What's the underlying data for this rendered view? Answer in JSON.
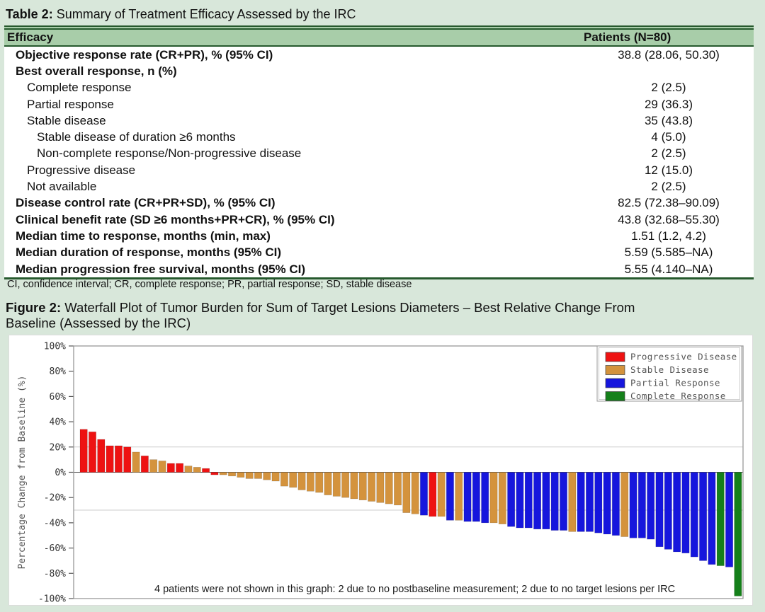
{
  "table": {
    "title_prefix": "Table 2:",
    "title_rest": " Summary of Treatment Efficacy Assessed by the IRC",
    "header": {
      "col1": "Efficacy",
      "col2": "Patients (N=80)"
    },
    "rows": [
      {
        "label": "Objective response rate (CR+PR), % (95% CI)",
        "value": "38.8 (28.06, 50.30)",
        "bold": true,
        "indent": 0
      },
      {
        "label": "Best overall response, n (%)",
        "value": "",
        "bold": true,
        "indent": 0
      },
      {
        "label": "Complete response",
        "value": "2 (2.5)",
        "bold": false,
        "indent": 1
      },
      {
        "label": "Partial response",
        "value": "29 (36.3)",
        "bold": false,
        "indent": 1
      },
      {
        "label": "Stable disease",
        "value": "35 (43.8)",
        "bold": false,
        "indent": 1
      },
      {
        "label": "Stable disease of duration ≥6 months",
        "value": "4 (5.0)",
        "bold": false,
        "indent": 2
      },
      {
        "label": "Non-complete response/Non-progressive disease",
        "value": "2 (2.5)",
        "bold": false,
        "indent": 2
      },
      {
        "label": "Progressive disease",
        "value": "12 (15.0)",
        "bold": false,
        "indent": 1
      },
      {
        "label": "Not available",
        "value": "2 (2.5)",
        "bold": false,
        "indent": 1
      },
      {
        "label": "Disease control rate (CR+PR+SD), % (95% CI)",
        "value": "82.5 (72.38–90.09)",
        "bold": true,
        "indent": 0
      },
      {
        "label": "Clinical benefit rate (SD ≥6 months+PR+CR), % (95% CI)",
        "value": "43.8 (32.68–55.30)",
        "bold": true,
        "indent": 0
      },
      {
        "label": "Median time to response, months (min, max)",
        "value": "1.51 (1.2, 4.2)",
        "bold": true,
        "indent": 0
      },
      {
        "label": "Median duration of response, months (95% CI)",
        "value": "5.59 (5.585–NA)",
        "bold": true,
        "indent": 0
      },
      {
        "label": "Median progression free survival, months (95% CI)",
        "value": "5.55 (4.140–NA)",
        "bold": true,
        "indent": 0
      }
    ],
    "footnote": "CI, confidence interval; CR, complete response; PR, partial response; SD, stable disease"
  },
  "figure": {
    "caption_prefix": "Figure 2:",
    "caption_line1": " Waterfall Plot of Tumor Burden for Sum of Target Lesions Diameters – Best Relative Change From",
    "caption_line2": "Baseline (Assessed by the IRC)"
  },
  "chart_data": {
    "type": "bar",
    "subtype": "waterfall",
    "title": "",
    "xlabel": "",
    "ylabel": "Percentage Change from Baseline (%)",
    "ylim": [
      -100,
      100
    ],
    "ytick_labels": [
      "100%",
      "80%",
      "60%",
      "40%",
      "20%",
      "0%",
      "-20%",
      "-40%",
      "-60%",
      "-80%",
      "-100%"
    ],
    "ytick_values": [
      100,
      80,
      60,
      40,
      20,
      0,
      -20,
      -40,
      -60,
      -80,
      -100
    ],
    "reference_lines": [
      20,
      -30
    ],
    "n_bars": 76,
    "values": [
      34,
      32,
      26,
      21,
      21,
      20,
      16,
      13,
      10,
      9,
      7,
      7,
      5,
      4,
      3,
      -2,
      -2,
      -3,
      -4,
      -5,
      -5,
      -6,
      -7,
      -11,
      -12,
      -14,
      -15,
      -16,
      -18,
      -19,
      -20,
      -21,
      -22,
      -23,
      -24,
      -25,
      -26,
      -32,
      -33,
      -34,
      -35,
      -35,
      -38,
      -38,
      -39,
      -39,
      -40,
      -40,
      -41,
      -43,
      -44,
      -44,
      -45,
      -45,
      -46,
      -46,
      -47,
      -47,
      -47,
      -48,
      -49,
      -50,
      -51,
      -52,
      -52,
      -53,
      -59,
      -61,
      -63,
      -64,
      -67,
      -70,
      -73,
      -74,
      -75,
      -98
    ],
    "response": [
      "PD",
      "PD",
      "PD",
      "PD",
      "PD",
      "PD",
      "SD",
      "PD",
      "SD",
      "SD",
      "PD",
      "PD",
      "SD",
      "SD",
      "PD",
      "PD",
      "SD",
      "SD",
      "SD",
      "SD",
      "SD",
      "SD",
      "SD",
      "SD",
      "SD",
      "SD",
      "SD",
      "SD",
      "SD",
      "SD",
      "SD",
      "SD",
      "SD",
      "SD",
      "SD",
      "SD",
      "SD",
      "SD",
      "SD",
      "PR",
      "PD",
      "SD",
      "PR",
      "SD",
      "PR",
      "PR",
      "PR",
      "SD",
      "SD",
      "PR",
      "PR",
      "PR",
      "PR",
      "PR",
      "PR",
      "PR",
      "SD",
      "PR",
      "PR",
      "PR",
      "PR",
      "PR",
      "SD",
      "PR",
      "PR",
      "PR",
      "PR",
      "PR",
      "PR",
      "PR",
      "PR",
      "PR",
      "PR",
      "CR",
      "PR",
      "CR"
    ],
    "legend": [
      {
        "key": "PD",
        "label": "Progressive Disease",
        "color": "#ee1212"
      },
      {
        "key": "SD",
        "label": "Stable Disease",
        "color": "#d4933d"
      },
      {
        "key": "PR",
        "label": "Partial Response",
        "color": "#1616dd"
      },
      {
        "key": "CR",
        "label": "Complete Response",
        "color": "#15801a"
      }
    ],
    "legend_position": "top-right",
    "grid": false,
    "footnote": "4 patients were not shown in this graph: 2 due to no postbaseline measurement; 2 due to no target lesions per IRC",
    "colors": {
      "axis_text": "#333333",
      "ref_line": "#cccccc",
      "zero_line": "#555555",
      "plot_border": "#999999"
    }
  }
}
